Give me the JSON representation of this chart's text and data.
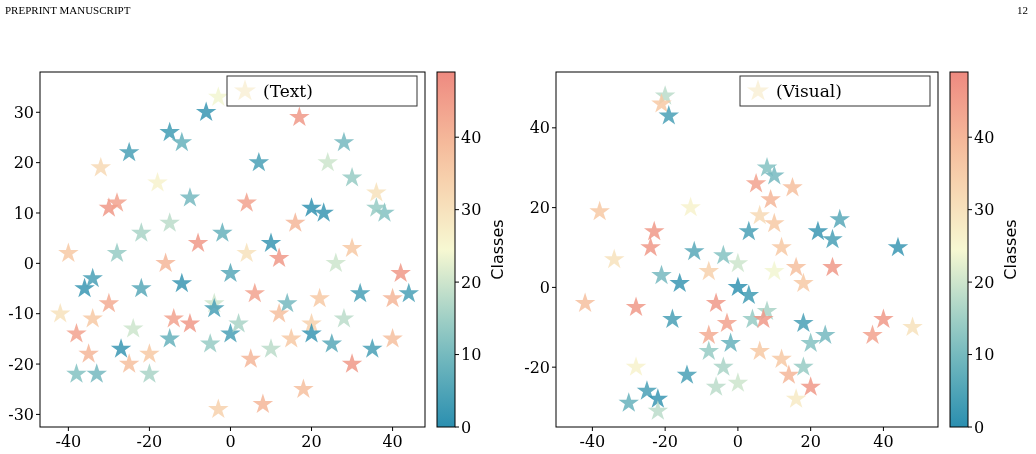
{
  "chart_data": [
    {
      "type": "scatter",
      "annotations": [
        "PREPRINT MANUSCRIPT"
      ],
      "clabel": "Classes",
      "clim": [
        0,
        49
      ],
      "cticks": [
        0,
        10,
        20,
        30,
        40
      ],
      "xlim": [
        -47,
        48
      ],
      "ylim": [
        -32.5,
        38
      ],
      "xticks": [
        -40,
        -20,
        0,
        20,
        40
      ],
      "yticks": [
        -30,
        -20,
        -10,
        0,
        10,
        20,
        30
      ],
      "legend": "top right",
      "marker": "star",
      "grid": false,
      "series": [
        {
          "name": "(Text)",
          "x": [
            -6,
            -3,
            -15,
            -12,
            -36,
            -34,
            20,
            23,
            38,
            36,
            -30,
            -28,
            -27,
            -18,
            -32,
            -40,
            -42,
            -38,
            -35,
            -33,
            -25,
            -20,
            -15,
            -10,
            -5,
            0,
            5,
            10,
            15,
            20,
            25,
            30,
            35,
            40,
            42,
            44,
            -22,
            -15,
            -8,
            -2,
            4,
            10,
            16,
            24,
            30,
            36,
            -30,
            -22,
            -12,
            -4,
            6,
            14,
            22,
            32,
            40,
            -34,
            -24,
            -14,
            -4,
            2,
            12,
            20,
            28,
            -3,
            8,
            18,
            -28,
            -16,
            0,
            12,
            26,
            -10,
            4,
            7,
            17,
            -25,
            28,
            -20,
            30,
            -38
          ],
          "values": [
            30,
            33,
            26,
            24,
            -5,
            -3,
            11,
            10,
            10,
            11,
            11,
            12,
            -17,
            16,
            19,
            2,
            -10,
            -14,
            -18,
            -22,
            -20,
            -18,
            -15,
            -12,
            -16,
            -14,
            -19,
            -17,
            -15,
            -12,
            -16,
            -20,
            -17,
            -15,
            -2,
            -6,
            6,
            8,
            4,
            6,
            2,
            4,
            8,
            20,
            17,
            14,
            -8,
            -5,
            -4,
            -8,
            -6,
            -8,
            -7,
            -6,
            -7,
            -11,
            -13,
            -11,
            -9,
            -12,
            -10,
            -14,
            -11,
            -29,
            -28,
            -25,
            2,
            0,
            -2,
            1,
            0,
            13,
            12,
            20,
            29,
            22,
            24,
            -22,
            3,
            -22
          ],
          "cvalues": [
            2,
            24,
            3,
            8,
            2,
            4,
            1,
            2,
            12,
            14,
            46,
            44,
            2,
            26,
            32,
            36,
            30,
            44,
            40,
            10,
            38,
            36,
            8,
            46,
            14,
            4,
            40,
            18,
            36,
            34,
            6,
            46,
            4,
            38,
            46,
            4,
            16,
            18,
            46,
            8,
            30,
            2,
            40,
            20,
            14,
            30,
            42,
            6,
            2,
            20,
            44,
            10,
            36,
            4,
            40,
            36,
            20,
            44,
            4,
            16,
            38,
            2,
            18,
            34,
            40,
            38,
            14,
            40,
            6,
            46,
            20,
            10,
            44,
            4,
            46,
            4,
            10,
            16,
            36,
            12
          ]
        }
      ]
    },
    {
      "type": "scatter",
      "annotations": [
        "12"
      ],
      "clabel": "Classes",
      "clim": [
        0,
        49
      ],
      "cticks": [
        0,
        10,
        20,
        30,
        40
      ],
      "xlim": [
        -50,
        55
      ],
      "ylim": [
        -35,
        54
      ],
      "xticks": [
        -40,
        -20,
        0,
        20,
        40
      ],
      "yticks": [
        -20,
        0,
        20,
        40
      ],
      "legend": "top right",
      "marker": "star",
      "grid": false,
      "series": [
        {
          "name": "(Visual)",
          "x": [
            -20,
            -21,
            -19,
            8,
            10,
            5,
            15,
            6,
            10,
            3,
            -38,
            -13,
            -23,
            -24,
            -12,
            -34,
            -21,
            -16,
            -42,
            -28,
            -18,
            0,
            3,
            -6,
            -3,
            -8,
            4,
            8,
            0,
            -4,
            10,
            16,
            18,
            22,
            28,
            26,
            44,
            26,
            40,
            48,
            37,
            18,
            24,
            20,
            -4,
            -6,
            0,
            -8,
            14,
            18,
            16,
            12,
            20,
            -30,
            -25,
            -28,
            -22,
            -14,
            -22,
            6,
            7,
            -8,
            12,
            -2,
            9
          ],
          "values": [
            48,
            46,
            43,
            30,
            28,
            26,
            25,
            18,
            16,
            14,
            19,
            20,
            14,
            10,
            9,
            7,
            3,
            1,
            -4,
            -5,
            -8,
            0,
            -2,
            -4,
            -9,
            -12,
            -8,
            -6,
            6,
            8,
            4,
            5,
            1,
            14,
            17,
            12,
            10,
            5,
            -8,
            -10,
            -12,
            -9,
            -12,
            -14,
            -20,
            -25,
            -24,
            -16,
            -22,
            -20,
            -28,
            -18,
            -25,
            -29,
            -26,
            -20,
            -28,
            -22,
            -31,
            -16,
            -8,
            4,
            10,
            -14,
            22
          ],
          "cvalues": [
            18,
            36,
            4,
            12,
            10,
            44,
            38,
            32,
            36,
            4,
            36,
            26,
            46,
            46,
            6,
            30,
            10,
            2,
            38,
            46,
            4,
            1,
            3,
            46,
            44,
            42,
            14,
            16,
            20,
            12,
            24,
            38,
            36,
            2,
            6,
            4,
            2,
            46,
            46,
            30,
            44,
            4,
            10,
            12,
            16,
            18,
            20,
            14,
            40,
            14,
            28,
            36,
            46,
            8,
            4,
            26,
            2,
            4,
            18,
            36,
            46,
            34,
            36,
            8,
            40
          ]
        }
      ]
    }
  ]
}
